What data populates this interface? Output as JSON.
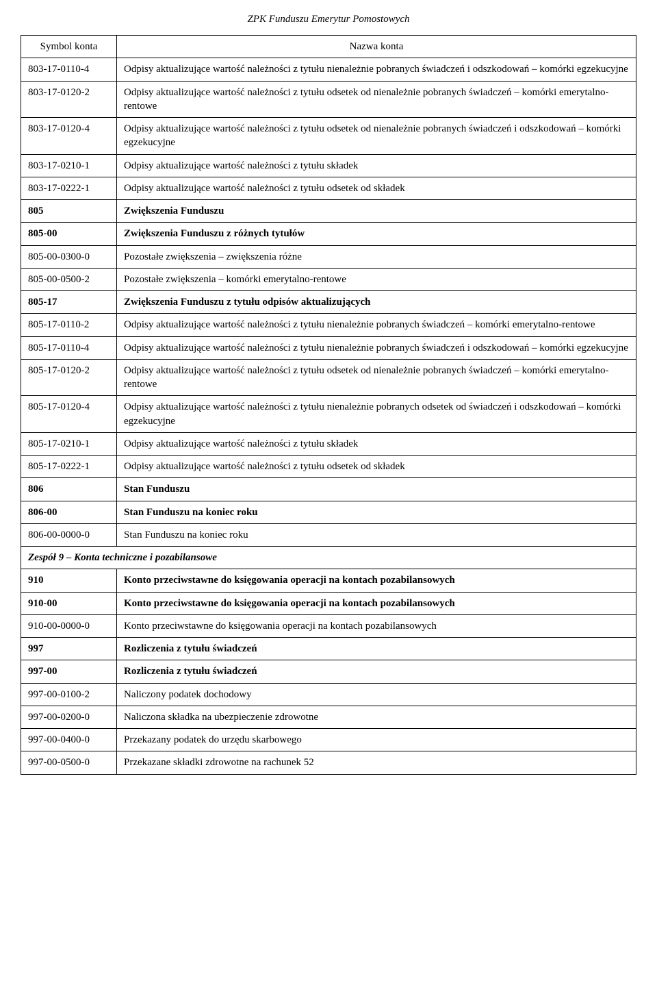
{
  "header_title": "ZPK Funduszu Emerytur Pomostowych",
  "columns": {
    "symbol": "Symbol konta",
    "name": "Nazwa konta"
  },
  "rows": [
    {
      "type": "row",
      "symbol": "803-17-0110-4",
      "name": "Odpisy aktualizujące wartość należności z tytułu nienależnie pobranych świadczeń i odszkodowań – komórki egzekucyjne"
    },
    {
      "type": "row",
      "symbol": "803-17-0120-2",
      "name": "Odpisy aktualizujące wartość należności z tytułu odsetek od nienależnie pobranych świadczeń – komórki emerytalno-rentowe"
    },
    {
      "type": "row",
      "symbol": "803-17-0120-4",
      "name": "Odpisy aktualizujące wartość należności z tytułu odsetek od nienależnie pobranych świadczeń i odszkodowań – komórki egzekucyjne"
    },
    {
      "type": "row",
      "symbol": "803-17-0210-1",
      "name": "Odpisy aktualizujące wartość należności z tytułu składek"
    },
    {
      "type": "row",
      "symbol": "803-17-0222-1",
      "name": "Odpisy aktualizujące wartość należności z tytułu odsetek od składek"
    },
    {
      "type": "bold",
      "symbol": "805",
      "name": "Zwiększenia Funduszu"
    },
    {
      "type": "bold",
      "symbol": "805-00",
      "name": "Zwiększenia Funduszu z różnych tytułów"
    },
    {
      "type": "row",
      "symbol": "805-00-0300-0",
      "name": "Pozostałe zwiększenia – zwiększenia różne"
    },
    {
      "type": "row",
      "symbol": "805-00-0500-2",
      "name": "Pozostałe zwiększenia – komórki emerytalno-rentowe"
    },
    {
      "type": "bold",
      "symbol": "805-17",
      "name": "Zwiększenia Funduszu z tytułu odpisów aktualizujących"
    },
    {
      "type": "row",
      "symbol": "805-17-0110-2",
      "name": "Odpisy aktualizujące wartość należności z tytułu nienależnie pobranych świadczeń – komórki emerytalno-rentowe"
    },
    {
      "type": "row",
      "symbol": "805-17-0110-4",
      "name": "Odpisy aktualizujące wartość należności z tytułu nienależnie pobranych świadczeń i odszkodowań – komórki egzekucyjne"
    },
    {
      "type": "row",
      "symbol": "805-17-0120-2",
      "name": "Odpisy aktualizujące wartość należności z tytułu odsetek od nienależnie pobranych świadczeń – komórki emerytalno-rentowe"
    },
    {
      "type": "row",
      "symbol": "805-17-0120-4",
      "name": "Odpisy aktualizujące wartość należności z tytułu nienależnie pobranych odsetek od świadczeń i odszkodowań – komórki egzekucyjne"
    },
    {
      "type": "row",
      "symbol": "805-17-0210-1",
      "name": "Odpisy aktualizujące wartość należności z tytułu składek"
    },
    {
      "type": "row",
      "symbol": "805-17-0222-1",
      "name": "Odpisy aktualizujące wartość należności z tytułu odsetek od składek"
    },
    {
      "type": "bold",
      "symbol": "806",
      "name": "Stan Funduszu"
    },
    {
      "type": "bold",
      "symbol": "806-00",
      "name": "Stan Funduszu na koniec roku"
    },
    {
      "type": "row",
      "symbol": "806-00-0000-0",
      "name": "Stan Funduszu na koniec roku"
    },
    {
      "type": "section",
      "text": "Zespół 9 – Konta techniczne i pozabilansowe"
    },
    {
      "type": "bold",
      "symbol": "910",
      "name": "Konto przeciwstawne do księgowania operacji na kontach pozabilansowych"
    },
    {
      "type": "bold",
      "symbol": "910-00",
      "name": "Konto przeciwstawne do księgowania operacji na kontach pozabilansowych"
    },
    {
      "type": "row",
      "symbol": "910-00-0000-0",
      "name": "Konto przeciwstawne do księgowania operacji na kontach pozabilansowych"
    },
    {
      "type": "bold",
      "symbol": "997",
      "name": "Rozliczenia z tytułu świadczeń"
    },
    {
      "type": "bold",
      "symbol": "997-00",
      "name": "Rozliczenia z tytułu świadczeń"
    },
    {
      "type": "row",
      "symbol": "997-00-0100-2",
      "name": "Naliczony podatek dochodowy"
    },
    {
      "type": "row",
      "symbol": "997-00-0200-0",
      "name": "Naliczona składka na ubezpieczenie zdrowotne"
    },
    {
      "type": "row",
      "symbol": "997-00-0400-0",
      "name": "Przekazany podatek do urzędu skarbowego"
    },
    {
      "type": "row",
      "symbol": "997-00-0500-0",
      "name": "Przekazane składki zdrowotne na rachunek 52"
    }
  ]
}
